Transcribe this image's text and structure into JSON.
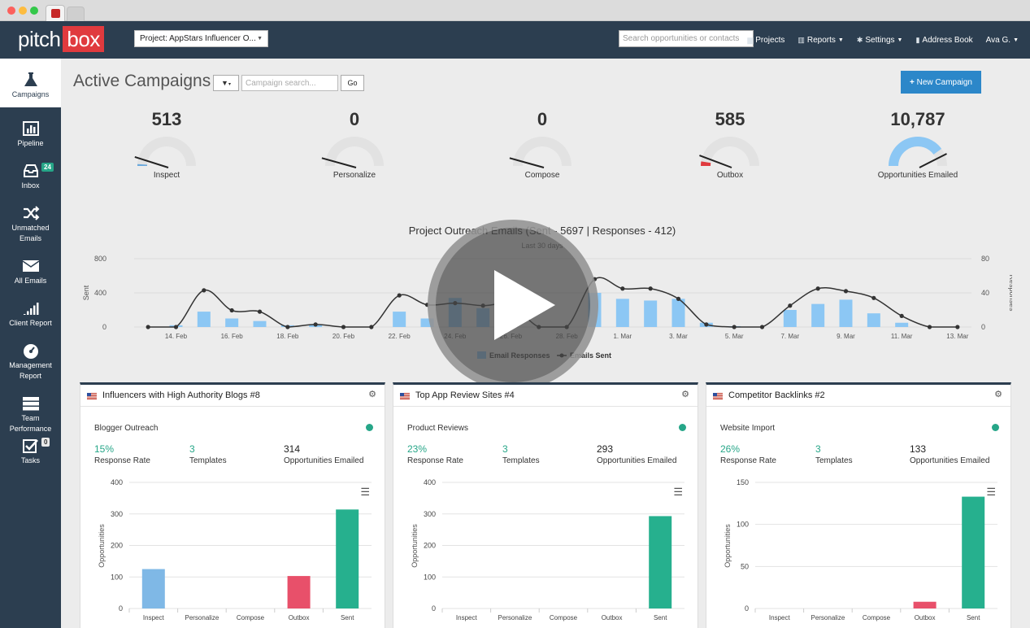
{
  "app": {
    "logo_left": "pitch",
    "logo_right": "box",
    "project_select": "Project: AppStars Influencer O...",
    "search_placeholder": "Search opportunities or contacts",
    "nav": [
      {
        "label": "Projects",
        "icon": "briefcase-icon",
        "caret": false
      },
      {
        "label": "Reports",
        "icon": "bar-chart-icon",
        "caret": true
      },
      {
        "label": "Settings",
        "icon": "gear-icon",
        "caret": true
      },
      {
        "label": "Address Book",
        "icon": "book-icon",
        "caret": false
      },
      {
        "label": "Ava G.",
        "icon": "",
        "caret": true
      }
    ]
  },
  "sidebar": {
    "items": [
      {
        "label": "Campaigns",
        "icon": "flask-icon",
        "active": true
      },
      {
        "label": "Pipeline",
        "icon": "bar-chart-icon"
      },
      {
        "label": "Inbox",
        "icon": "inbox-icon",
        "badge": "24"
      },
      {
        "label": "Unmatched Emails",
        "icon": "shuffle-icon"
      },
      {
        "label": "All Emails",
        "icon": "envelope-icon"
      },
      {
        "label": "Client Report",
        "icon": "signal-icon"
      },
      {
        "label": "Management Report",
        "icon": "dashboard-icon"
      },
      {
        "label": "Team Performance",
        "icon": "server-icon"
      },
      {
        "label": "Tasks",
        "icon": "checkbox-icon",
        "badge": "0"
      }
    ]
  },
  "header": {
    "title": "Active Campaigns",
    "campaign_search_placeholder": "Campaign search...",
    "go_label": "Go",
    "new_campaign_label": "New Campaign"
  },
  "gauges": [
    {
      "label": "Inspect",
      "value": "513",
      "fill": 0.02,
      "color": "#6aa9dd"
    },
    {
      "label": "Personalize",
      "value": "0",
      "fill": 0.0,
      "color": "#cfcfcf"
    },
    {
      "label": "Compose",
      "value": "0",
      "fill": 0.0,
      "color": "#cfcfcf"
    },
    {
      "label": "Outbox",
      "value": "585",
      "fill": 0.05,
      "color": "#e03a3e"
    },
    {
      "label": "Opportunities Emailed",
      "value": "10,787",
      "fill": 0.8,
      "color": "#8cc7f4"
    }
  ],
  "outreach_chart": {
    "title": "Project Outreach Emails (Sent - 5697 | Responses - 412)",
    "subtitle": "Last 30 days",
    "left_axis_label": "Sent",
    "right_axis_label": "Responses",
    "left_ticks": [
      "800",
      "400",
      "0"
    ],
    "right_ticks": [
      "80",
      "40",
      "0"
    ],
    "legend": {
      "bars": "Email Responses",
      "line": "Emails Sent"
    }
  },
  "chart_data": {
    "type": "bar",
    "x_tick_labels": [
      "14. Feb",
      "16. Feb",
      "18. Feb",
      "20. Feb",
      "22. Feb",
      "24. Feb",
      "26. Feb",
      "28. Feb",
      "1. Mar",
      "3. Mar",
      "5. Mar",
      "7. Mar",
      "9. Mar",
      "11. Mar",
      "13. Mar"
    ],
    "left_range": [
      0,
      800
    ],
    "right_range": [
      0,
      80
    ],
    "series": [
      {
        "name": "Email Responses",
        "type": "bar",
        "axis": "right",
        "values": [
          0,
          2,
          18,
          10,
          7,
          2,
          3,
          0,
          0,
          18,
          10,
          34,
          22,
          14,
          0,
          0,
          40,
          33,
          31,
          33,
          5,
          1,
          0,
          20,
          27,
          32,
          16,
          5,
          0,
          0
        ]
      },
      {
        "name": "Emails Sent",
        "type": "line",
        "axis": "left",
        "values": [
          0,
          0,
          430,
          195,
          180,
          0,
          30,
          0,
          0,
          370,
          260,
          280,
          250,
          260,
          0,
          0,
          560,
          450,
          450,
          330,
          30,
          0,
          0,
          250,
          450,
          420,
          340,
          130,
          0,
          0
        ]
      }
    ]
  },
  "panels": [
    {
      "title": "Influencers with High Authority Blogs #8",
      "type": "Blogger Outreach",
      "response_rate": "15%",
      "response_rate_label": "Response Rate",
      "templates": "3",
      "templates_label": "Templates",
      "emailed": "314",
      "emailed_label": "Opportunities Emailed",
      "chart": {
        "type": "bar",
        "categories": [
          "Inspect",
          "Personalize",
          "Compose",
          "Outbox",
          "Sent"
        ],
        "values": [
          125,
          0,
          0,
          103,
          314
        ],
        "ylim": [
          0,
          400
        ],
        "ticks": [
          "400",
          "300",
          "200",
          "100",
          "0"
        ],
        "ylabel": "Opportunities"
      }
    },
    {
      "title": "Top App Review Sites #4",
      "type": "Product Reviews",
      "response_rate": "23%",
      "response_rate_label": "Response Rate",
      "templates": "3",
      "templates_label": "Templates",
      "emailed": "293",
      "emailed_label": "Opportunities Emailed",
      "chart": {
        "type": "bar",
        "categories": [
          "Inspect",
          "Personalize",
          "Compose",
          "Outbox",
          "Sent"
        ],
        "values": [
          0,
          0,
          0,
          0,
          293
        ],
        "ylim": [
          0,
          400
        ],
        "ticks": [
          "400",
          "300",
          "200",
          "100",
          "0"
        ],
        "ylabel": "Opportunities"
      }
    },
    {
      "title": "Competitor Backlinks #2",
      "type": "Website Import",
      "response_rate": "26%",
      "response_rate_label": "Response Rate",
      "templates": "3",
      "templates_label": "Templates",
      "emailed": "133",
      "emailed_label": "Opportunities Emailed",
      "chart": {
        "type": "bar",
        "categories": [
          "Inspect",
          "Personalize",
          "Compose",
          "Outbox",
          "Sent"
        ],
        "values": [
          0,
          0,
          0,
          8,
          133
        ],
        "ylim": [
          0,
          150
        ],
        "ticks": [
          "150",
          "100",
          "50",
          "0"
        ],
        "ylabel": "Opportunities"
      }
    }
  ],
  "colors": {
    "nav_bg": "#2c3e50",
    "accent_blue": "#2c87c9",
    "teal": "#26a688",
    "bar_blue": "#8cc7f4",
    "outbox_red": "#e8506a",
    "sent_green": "#26b08e"
  }
}
